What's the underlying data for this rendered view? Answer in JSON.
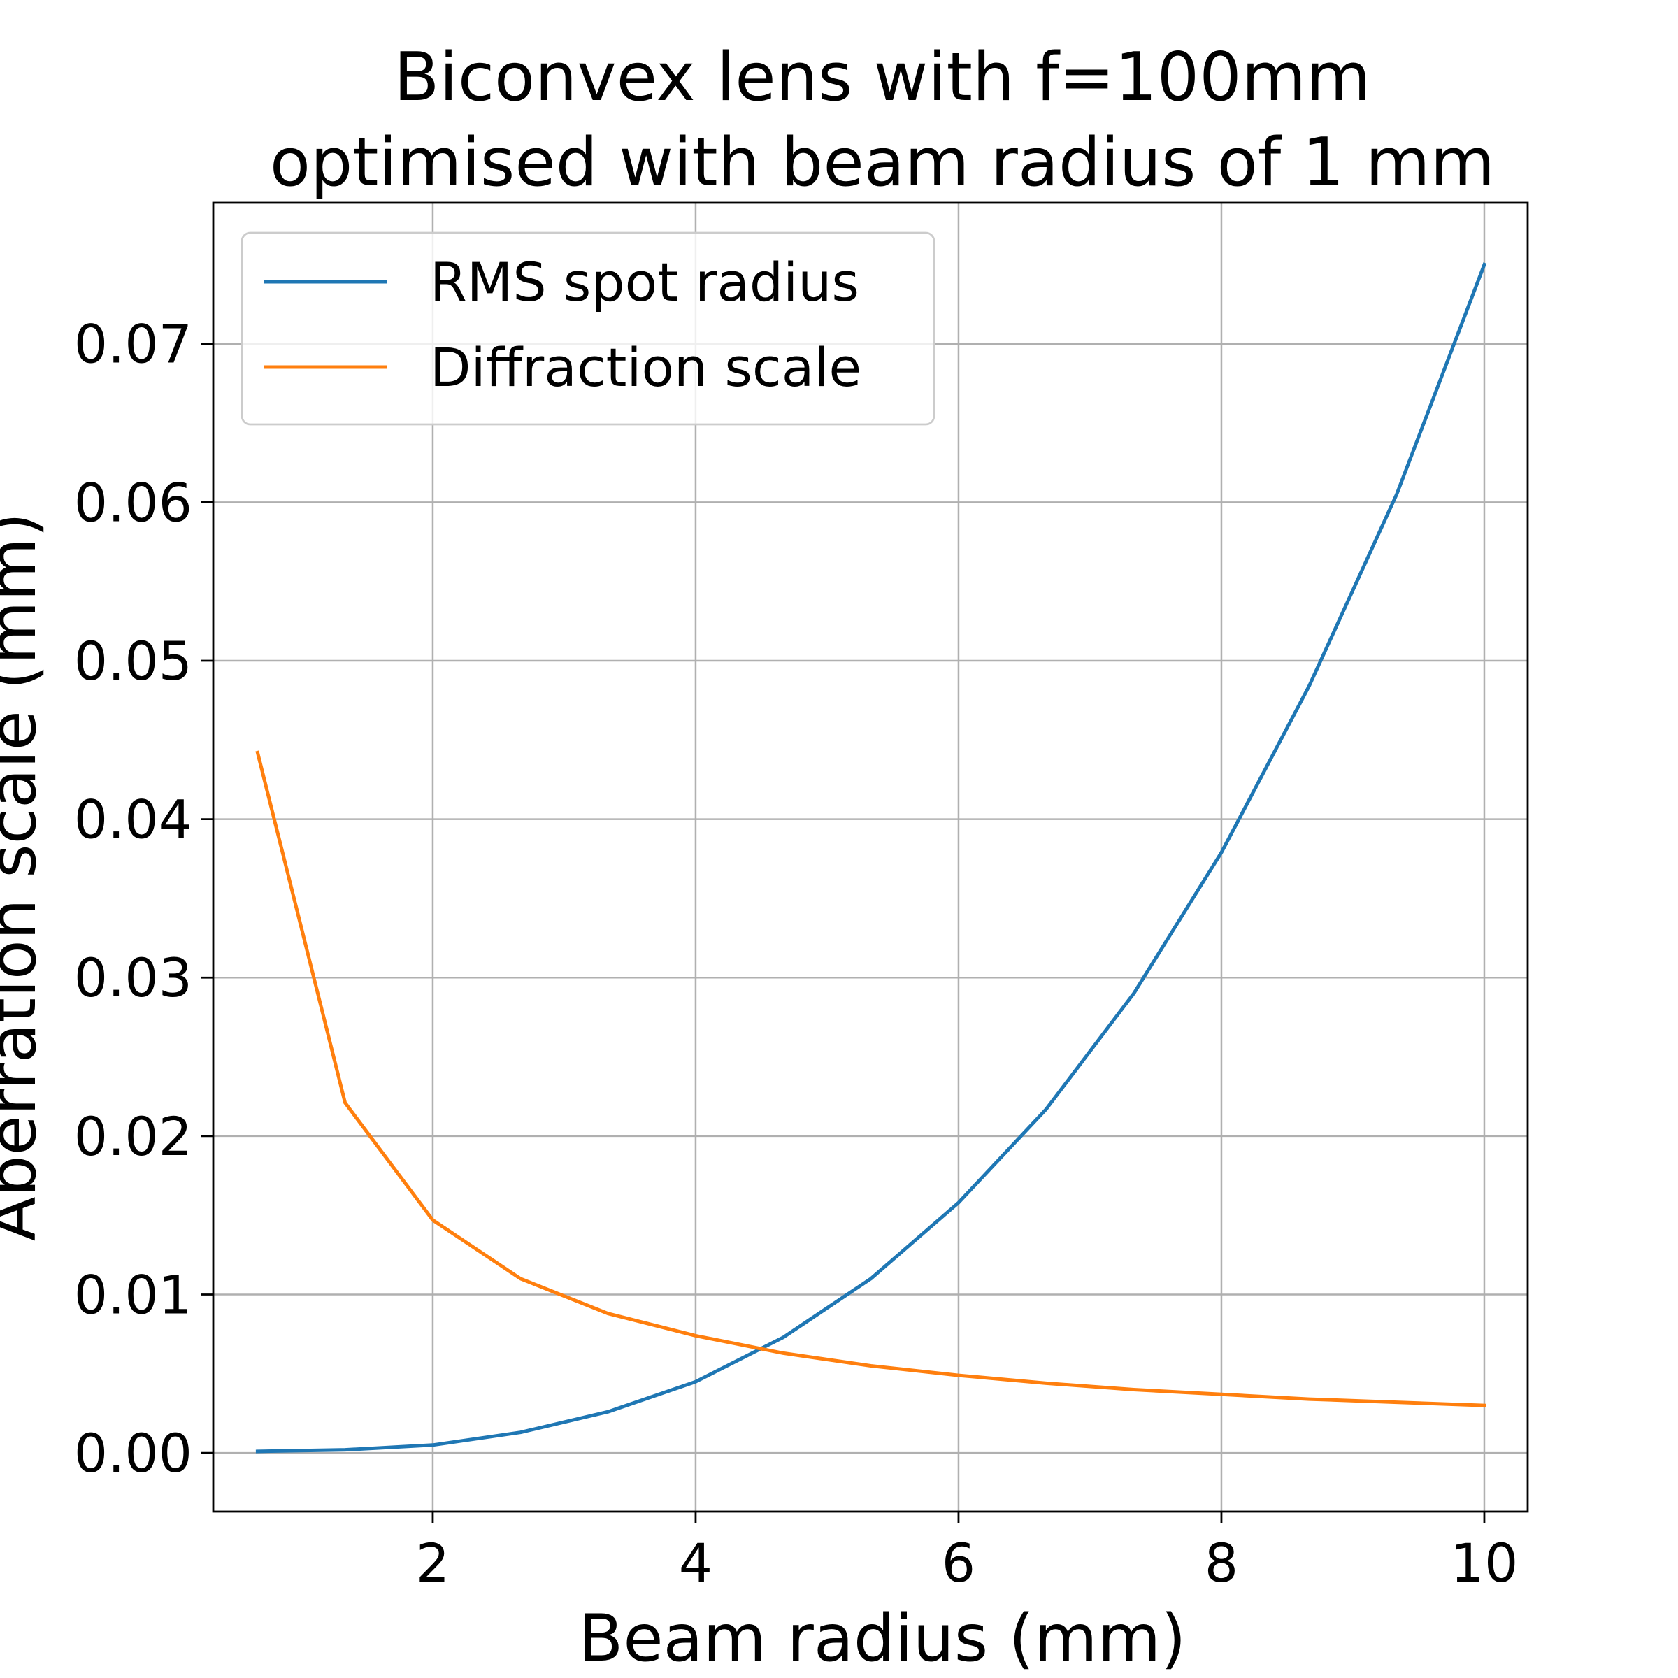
{
  "chart_data": {
    "type": "line",
    "title": [
      "Biconvex lens with f=100mm",
      "optimised with beam radius of 1 mm"
    ],
    "xlabel": "Beam radius (mm)",
    "ylabel": "Aberration scale (mm)",
    "xlim": [
      0.33,
      10.33
    ],
    "ylim": [
      -0.0037,
      0.0789
    ],
    "xticks": [
      2,
      4,
      6,
      8,
      10
    ],
    "xtick_labels": [
      "2",
      "4",
      "6",
      "8",
      "10"
    ],
    "yticks": [
      0.0,
      0.01,
      0.02,
      0.03,
      0.04,
      0.05,
      0.06,
      0.07
    ],
    "ytick_labels": [
      "0.00",
      "0.01",
      "0.02",
      "0.03",
      "0.04",
      "0.05",
      "0.06",
      "0.07"
    ],
    "grid": true,
    "legend_position": "upper-left",
    "series": [
      {
        "name": "RMS spot radius",
        "color": "#1f77b4",
        "x": [
          0.667,
          1.333,
          2.0,
          2.667,
          3.333,
          4.0,
          4.667,
          5.333,
          6.0,
          6.667,
          7.333,
          8.0,
          8.667,
          9.333,
          10.0
        ],
        "y": [
          0.0001,
          0.0002,
          0.0005,
          0.0013,
          0.0026,
          0.0045,
          0.0073,
          0.011,
          0.0158,
          0.0217,
          0.029,
          0.0379,
          0.0484,
          0.0605,
          0.075
        ]
      },
      {
        "name": "Diffraction scale",
        "color": "#ff7f0e",
        "x": [
          0.667,
          1.333,
          2.0,
          2.667,
          3.333,
          4.0,
          4.667,
          5.333,
          6.0,
          6.667,
          7.333,
          8.0,
          8.667,
          9.333,
          10.0
        ],
        "y": [
          0.0442,
          0.0221,
          0.0147,
          0.011,
          0.0088,
          0.0074,
          0.0063,
          0.0055,
          0.0049,
          0.0044,
          0.004,
          0.0037,
          0.0034,
          0.0032,
          0.003
        ]
      }
    ]
  }
}
